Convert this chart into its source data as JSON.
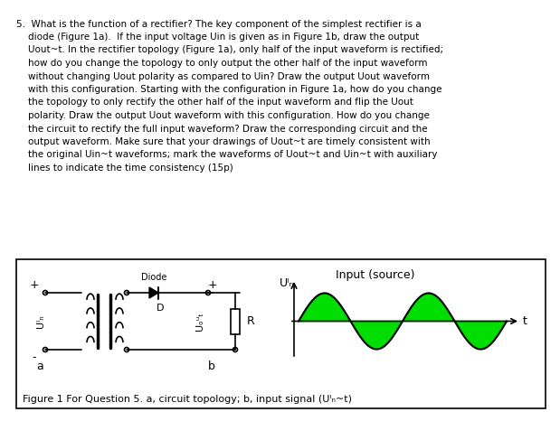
{
  "title_number": "5.",
  "question_text_lines": [
    "What is the function of a rectifier? The key component of the simplest rectifier is a",
    "diode (Figure 1a).  If the input voltage Uᴵₙ is given as in Figure 1b, draw the output",
    "Uₒᵘₜ~t. In the rectifier topology (Figure 1a), only half of the input waveform is rectified;",
    "how do you change the topology to only output the other half of the input waveform",
    "without changing Uₒᵘₜ polarity as compared to Uᴵₙ? Draw the output Uₒᵘₜ waveform",
    "with this configuration. Starting with the configuration in Figure 1a, how do you change",
    "the topology to only rectify the other half of the input waveform and flip the Uₒᵘₜ",
    "polarity. Draw the output Uₒᵘₜ waveform with this configuration. How do you change",
    "the circuit to rectify the full input waveform? Draw the corresponding circuit and the",
    "output waveform. Make sure that your drawings of Uₒᵘₜ~t are timely consistent with",
    "the original Uᴵₙ~t waveforms; mark the waveforms of Uₒᵘₜ~t and Uᴵₙ~t with auxiliary",
    "lines to indicate the time consistency (15p)"
  ],
  "figure_caption": "Figure 1 For Question 5. a, circuit topology; b, input signal (Uᴵₙ~t)",
  "signal_label": "Input (source)",
  "y_axis_label": "Uᴵₙ",
  "x_axis_label": "t",
  "wave_color": "#00cc00",
  "wave_linecolor": "#000000",
  "bg_color": "#ffffff",
  "box_color": "#000000",
  "figure_bg": "#ffffff"
}
